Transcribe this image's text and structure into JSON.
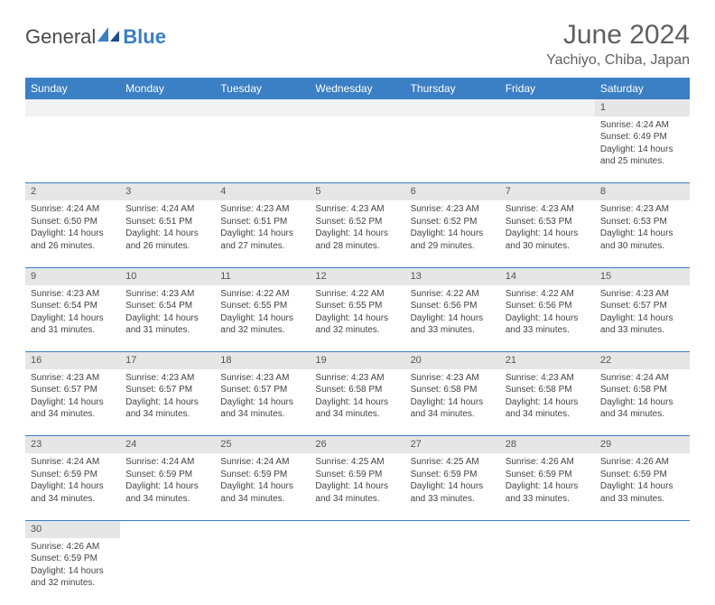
{
  "brand": {
    "part1": "General",
    "part2": "Blue"
  },
  "title": "June 2024",
  "location": "Yachiyo, Chiba, Japan",
  "colors": {
    "header_bg": "#3b7fc4",
    "header_text": "#ffffff",
    "daynum_bg": "#e6e6e6",
    "row_border": "#3b7fc4",
    "text": "#444444",
    "title_text": "#606060"
  },
  "day_headers": [
    "Sunday",
    "Monday",
    "Tuesday",
    "Wednesday",
    "Thursday",
    "Friday",
    "Saturday"
  ],
  "weeks": [
    {
      "nums": [
        "",
        "",
        "",
        "",
        "",
        "",
        "1"
      ],
      "cells": [
        null,
        null,
        null,
        null,
        null,
        null,
        {
          "sunrise": "4:24 AM",
          "sunset": "6:49 PM",
          "daylight": "14 hours and 25 minutes."
        }
      ]
    },
    {
      "nums": [
        "2",
        "3",
        "4",
        "5",
        "6",
        "7",
        "8"
      ],
      "cells": [
        {
          "sunrise": "4:24 AM",
          "sunset": "6:50 PM",
          "daylight": "14 hours and 26 minutes."
        },
        {
          "sunrise": "4:24 AM",
          "sunset": "6:51 PM",
          "daylight": "14 hours and 26 minutes."
        },
        {
          "sunrise": "4:23 AM",
          "sunset": "6:51 PM",
          "daylight": "14 hours and 27 minutes."
        },
        {
          "sunrise": "4:23 AM",
          "sunset": "6:52 PM",
          "daylight": "14 hours and 28 minutes."
        },
        {
          "sunrise": "4:23 AM",
          "sunset": "6:52 PM",
          "daylight": "14 hours and 29 minutes."
        },
        {
          "sunrise": "4:23 AM",
          "sunset": "6:53 PM",
          "daylight": "14 hours and 30 minutes."
        },
        {
          "sunrise": "4:23 AM",
          "sunset": "6:53 PM",
          "daylight": "14 hours and 30 minutes."
        }
      ]
    },
    {
      "nums": [
        "9",
        "10",
        "11",
        "12",
        "13",
        "14",
        "15"
      ],
      "cells": [
        {
          "sunrise": "4:23 AM",
          "sunset": "6:54 PM",
          "daylight": "14 hours and 31 minutes."
        },
        {
          "sunrise": "4:23 AM",
          "sunset": "6:54 PM",
          "daylight": "14 hours and 31 minutes."
        },
        {
          "sunrise": "4:22 AM",
          "sunset": "6:55 PM",
          "daylight": "14 hours and 32 minutes."
        },
        {
          "sunrise": "4:22 AM",
          "sunset": "6:55 PM",
          "daylight": "14 hours and 32 minutes."
        },
        {
          "sunrise": "4:22 AM",
          "sunset": "6:56 PM",
          "daylight": "14 hours and 33 minutes."
        },
        {
          "sunrise": "4:22 AM",
          "sunset": "6:56 PM",
          "daylight": "14 hours and 33 minutes."
        },
        {
          "sunrise": "4:23 AM",
          "sunset": "6:57 PM",
          "daylight": "14 hours and 33 minutes."
        }
      ]
    },
    {
      "nums": [
        "16",
        "17",
        "18",
        "19",
        "20",
        "21",
        "22"
      ],
      "cells": [
        {
          "sunrise": "4:23 AM",
          "sunset": "6:57 PM",
          "daylight": "14 hours and 34 minutes."
        },
        {
          "sunrise": "4:23 AM",
          "sunset": "6:57 PM",
          "daylight": "14 hours and 34 minutes."
        },
        {
          "sunrise": "4:23 AM",
          "sunset": "6:57 PM",
          "daylight": "14 hours and 34 minutes."
        },
        {
          "sunrise": "4:23 AM",
          "sunset": "6:58 PM",
          "daylight": "14 hours and 34 minutes."
        },
        {
          "sunrise": "4:23 AM",
          "sunset": "6:58 PM",
          "daylight": "14 hours and 34 minutes."
        },
        {
          "sunrise": "4:23 AM",
          "sunset": "6:58 PM",
          "daylight": "14 hours and 34 minutes."
        },
        {
          "sunrise": "4:24 AM",
          "sunset": "6:58 PM",
          "daylight": "14 hours and 34 minutes."
        }
      ]
    },
    {
      "nums": [
        "23",
        "24",
        "25",
        "26",
        "27",
        "28",
        "29"
      ],
      "cells": [
        {
          "sunrise": "4:24 AM",
          "sunset": "6:59 PM",
          "daylight": "14 hours and 34 minutes."
        },
        {
          "sunrise": "4:24 AM",
          "sunset": "6:59 PM",
          "daylight": "14 hours and 34 minutes."
        },
        {
          "sunrise": "4:24 AM",
          "sunset": "6:59 PM",
          "daylight": "14 hours and 34 minutes."
        },
        {
          "sunrise": "4:25 AM",
          "sunset": "6:59 PM",
          "daylight": "14 hours and 34 minutes."
        },
        {
          "sunrise": "4:25 AM",
          "sunset": "6:59 PM",
          "daylight": "14 hours and 33 minutes."
        },
        {
          "sunrise": "4:26 AM",
          "sunset": "6:59 PM",
          "daylight": "14 hours and 33 minutes."
        },
        {
          "sunrise": "4:26 AM",
          "sunset": "6:59 PM",
          "daylight": "14 hours and 33 minutes."
        }
      ]
    },
    {
      "nums": [
        "30",
        "",
        "",
        "",
        "",
        "",
        ""
      ],
      "cells": [
        {
          "sunrise": "4:26 AM",
          "sunset": "6:59 PM",
          "daylight": "14 hours and 32 minutes."
        },
        null,
        null,
        null,
        null,
        null,
        null
      ]
    }
  ],
  "labels": {
    "sunrise": "Sunrise:",
    "sunset": "Sunset:",
    "daylight": "Daylight:"
  }
}
